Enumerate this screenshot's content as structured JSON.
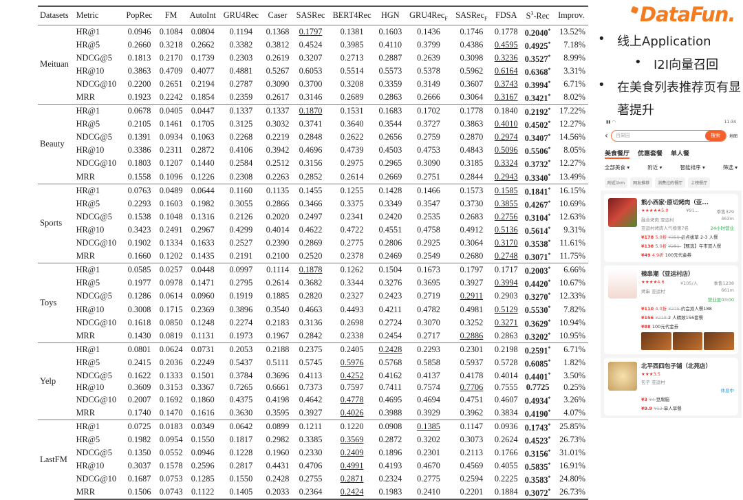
{
  "table": {
    "headers": [
      "Datasets",
      "Metric",
      "PopRec",
      "FM",
      "AutoInt",
      "GRU4Rec",
      "Caser",
      "SASRec",
      "BERT4Rec",
      "HGN",
      "GRU4Rec",
      "SASRec",
      "FDSA",
      "S",
      "Improv."
    ],
    "header_subscripts": {
      "10": "F",
      "11": "F"
    },
    "s3rec_header": {
      "base": "S",
      "sup": "3",
      "rest": "-Rec"
    },
    "groups": [
      {
        "dataset": "Meituan",
        "rows": [
          {
            "metric": "HR@1",
            "values": [
              "0.0946",
              "0.1084",
              "0.0804",
              "0.1194",
              "0.1368",
              "0.1797",
              "0.1381",
              "0.1603",
              "0.1436",
              "0.1746",
              "0.1778",
              "0.2040",
              "13.52%"
            ],
            "underline": 5,
            "star": true
          },
          {
            "metric": "HR@5",
            "values": [
              "0.2660",
              "0.3218",
              "0.2662",
              "0.3382",
              "0.3812",
              "0.4524",
              "0.3985",
              "0.4110",
              "0.3799",
              "0.4386",
              "0.4595",
              "0.4925",
              "7.18%"
            ],
            "underline": 10,
            "star": true
          },
          {
            "metric": "NDCG@5",
            "values": [
              "0.1813",
              "0.2170",
              "0.1739",
              "0.2303",
              "0.2619",
              "0.3207",
              "0.2713",
              "0.2887",
              "0.2639",
              "0.3098",
              "0.3236",
              "0.3527",
              "8.99%"
            ],
            "underline": 10,
            "star": true
          },
          {
            "metric": "HR@10",
            "values": [
              "0.3863",
              "0.4709",
              "0.4077",
              "0.4881",
              "0.5267",
              "0.6053",
              "0.5514",
              "0.5573",
              "0.5378",
              "0.5962",
              "0.6164",
              "0.6368",
              "3.31%"
            ],
            "underline": 10,
            "star": true
          },
          {
            "metric": "NDCG@10",
            "values": [
              "0.2200",
              "0.2651",
              "0.2194",
              "0.2787",
              "0.3090",
              "0.3700",
              "0.3208",
              "0.3359",
              "0.3149",
              "0.3607",
              "0.3743",
              "0.3994",
              "6.71%"
            ],
            "underline": 10,
            "star": true
          },
          {
            "metric": "MRR",
            "values": [
              "0.1923",
              "0.2242",
              "0.1854",
              "0.2359",
              "0.2617",
              "0.3146",
              "0.2689",
              "0.2863",
              "0.2666",
              "0.3064",
              "0.3167",
              "0.3421",
              "8.02%"
            ],
            "underline": 10,
            "star": true
          }
        ]
      },
      {
        "dataset": "Beauty",
        "rows": [
          {
            "metric": "HR@1",
            "values": [
              "0.0678",
              "0.0405",
              "0.0447",
              "0.1337",
              "0.1337",
              "0.1870",
              "0.1531",
              "0.1683",
              "0.1702",
              "0.1778",
              "0.1840",
              "0.2192",
              "17.22%"
            ],
            "underline": 5,
            "star": true
          },
          {
            "metric": "HR@5",
            "values": [
              "0.2105",
              "0.1461",
              "0.1705",
              "0.3125",
              "0.3032",
              "0.3741",
              "0.3640",
              "0.3544",
              "0.3727",
              "0.3863",
              "0.4010",
              "0.4502",
              "12.27%"
            ],
            "underline": 10,
            "star": true
          },
          {
            "metric": "NDCG@5",
            "values": [
              "0.1391",
              "0.0934",
              "0.1063",
              "0.2268",
              "0.2219",
              "0.2848",
              "0.2622",
              "0.2656",
              "0.2759",
              "0.2870",
              "0.2974",
              "0.3407",
              "14.56%"
            ],
            "underline": 10,
            "star": true
          },
          {
            "metric": "HR@10",
            "values": [
              "0.3386",
              "0.2311",
              "0.2872",
              "0.4106",
              "0.3942",
              "0.4696",
              "0.4739",
              "0.4503",
              "0.4753",
              "0.4843",
              "0.5096",
              "0.5506",
              "8.05%"
            ],
            "underline": 10,
            "star": true
          },
          {
            "metric": "NDCG@10",
            "values": [
              "0.1803",
              "0.1207",
              "0.1440",
              "0.2584",
              "0.2512",
              "0.3156",
              "0.2975",
              "0.2965",
              "0.3090",
              "0.3185",
              "0.3324",
              "0.3732",
              "12.27%"
            ],
            "underline": 10,
            "star": true
          },
          {
            "metric": "MRR",
            "values": [
              "0.1558",
              "0.1096",
              "0.1226",
              "0.2308",
              "0.2263",
              "0.2852",
              "0.2614",
              "0.2669",
              "0.2751",
              "0.2844",
              "0.2943",
              "0.3340",
              "13.49%"
            ],
            "underline": 10,
            "star": true
          }
        ]
      },
      {
        "dataset": "Sports",
        "rows": [
          {
            "metric": "HR@1",
            "values": [
              "0.0763",
              "0.0489",
              "0.0644",
              "0.1160",
              "0.1135",
              "0.1455",
              "0.1255",
              "0.1428",
              "0.1466",
              "0.1573",
              "0.1585",
              "0.1841",
              "16.15%"
            ],
            "underline": 10,
            "star": true
          },
          {
            "metric": "HR@5",
            "values": [
              "0.2293",
              "0.1603",
              "0.1982",
              "0.3055",
              "0.2866",
              "0.3466",
              "0.3375",
              "0.3349",
              "0.3547",
              "0.3730",
              "0.3855",
              "0.4267",
              "10.69%"
            ],
            "underline": 10,
            "star": true
          },
          {
            "metric": "NDCG@5",
            "values": [
              "0.1538",
              "0.1048",
              "0.1316",
              "0.2126",
              "0.2020",
              "0.2497",
              "0.2341",
              "0.2420",
              "0.2535",
              "0.2683",
              "0.2756",
              "0.3104",
              "12.63%"
            ],
            "underline": 10,
            "star": true
          },
          {
            "metric": "HR@10",
            "values": [
              "0.3423",
              "0.2491",
              "0.2967",
              "0.4299",
              "0.4014",
              "0.4622",
              "0.4722",
              "0.4551",
              "0.4758",
              "0.4912",
              "0.5136",
              "0.5614",
              "9.31%"
            ],
            "underline": 10,
            "star": true
          },
          {
            "metric": "NDCG@10",
            "values": [
              "0.1902",
              "0.1334",
              "0.1633",
              "0.2527",
              "0.2390",
              "0.2869",
              "0.2775",
              "0.2806",
              "0.2925",
              "0.3064",
              "0.3170",
              "0.3538",
              "11.61%"
            ],
            "underline": 10,
            "star": true
          },
          {
            "metric": "MRR",
            "values": [
              "0.1660",
              "0.1202",
              "0.1435",
              "0.2191",
              "0.2100",
              "0.2520",
              "0.2378",
              "0.2469",
              "0.2549",
              "0.2680",
              "0.2748",
              "0.3071",
              "11.75%"
            ],
            "underline": 10,
            "star": true
          }
        ]
      },
      {
        "dataset": "Toys",
        "rows": [
          {
            "metric": "HR@1",
            "values": [
              "0.0585",
              "0.0257",
              "0.0448",
              "0.0997",
              "0.1114",
              "0.1878",
              "0.1262",
              "0.1504",
              "0.1673",
              "0.1797",
              "0.1717",
              "0.2003",
              "6.66%"
            ],
            "underline": 5,
            "star": true
          },
          {
            "metric": "HR@5",
            "values": [
              "0.1977",
              "0.0978",
              "0.1471",
              "0.2795",
              "0.2614",
              "0.3682",
              "0.3344",
              "0.3276",
              "0.3695",
              "0.3927",
              "0.3994",
              "0.4420",
              "10.67%"
            ],
            "underline": 10,
            "star": true
          },
          {
            "metric": "NDCG@5",
            "values": [
              "0.1286",
              "0.0614",
              "0.0960",
              "0.1919",
              "0.1885",
              "0.2820",
              "0.2327",
              "0.2423",
              "0.2719",
              "0.2911",
              "0.2903",
              "0.3270",
              "12.33%"
            ],
            "underline": 9,
            "star": true
          },
          {
            "metric": "HR@10",
            "values": [
              "0.3008",
              "0.1715",
              "0.2369",
              "0.3896",
              "0.3540",
              "0.4663",
              "0.4493",
              "0.4211",
              "0.4782",
              "0.4981",
              "0.5129",
              "0.5530",
              "7.82%"
            ],
            "underline": 10,
            "star": true
          },
          {
            "metric": "NDCG@10",
            "values": [
              "0.1618",
              "0.0850",
              "0.1248",
              "0.2274",
              "0.2183",
              "0.3136",
              "0.2698",
              "0.2724",
              "0.3070",
              "0.3252",
              "0.3271",
              "0.3629",
              "10.94%"
            ],
            "underline": 10,
            "star": true
          },
          {
            "metric": "MRR",
            "values": [
              "0.1430",
              "0.0819",
              "0.1131",
              "0.1973",
              "0.1967",
              "0.2842",
              "0.2338",
              "0.2454",
              "0.2717",
              "0.2886",
              "0.2863",
              "0.3202",
              "10.95%"
            ],
            "underline": 9,
            "star": true
          }
        ]
      },
      {
        "dataset": "Yelp",
        "rows": [
          {
            "metric": "HR@1",
            "values": [
              "0.0801",
              "0.0624",
              "0.0731",
              "0.2053",
              "0.2188",
              "0.2375",
              "0.2405",
              "0.2428",
              "0.2293",
              "0.2301",
              "0.2198",
              "0.2591",
              "6.71%"
            ],
            "underline": 7,
            "star": true
          },
          {
            "metric": "HR@5",
            "values": [
              "0.2415",
              "0.2036",
              "0.2249",
              "0.5437",
              "0.5111",
              "0.5745",
              "0.5976",
              "0.5768",
              "0.5858",
              "0.5937",
              "0.5728",
              "0.6085",
              "1.82%"
            ],
            "underline": 6,
            "star": true
          },
          {
            "metric": "NDCG@5",
            "values": [
              "0.1622",
              "0.1333",
              "0.1501",
              "0.3784",
              "0.3696",
              "0.4113",
              "0.4252",
              "0.4162",
              "0.4137",
              "0.4178",
              "0.4014",
              "0.4401",
              "3.50%"
            ],
            "underline": 6,
            "star": true
          },
          {
            "metric": "HR@10",
            "values": [
              "0.3609",
              "0.3153",
              "0.3367",
              "0.7265",
              "0.6661",
              "0.7373",
              "0.7597",
              "0.7411",
              "0.7574",
              "0.7706",
              "0.7555",
              "0.7725",
              "0.25%"
            ],
            "underline": 9,
            "star": false
          },
          {
            "metric": "NDCG@10",
            "values": [
              "0.2007",
              "0.1692",
              "0.1860",
              "0.4375",
              "0.4198",
              "0.4642",
              "0.4778",
              "0.4695",
              "0.4694",
              "0.4751",
              "0.4607",
              "0.4934",
              "3.26%"
            ],
            "underline": 6,
            "star": true
          },
          {
            "metric": "MRR",
            "values": [
              "0.1740",
              "0.1470",
              "0.1616",
              "0.3630",
              "0.3595",
              "0.3927",
              "0.4026",
              "0.3988",
              "0.3929",
              "0.3962",
              "0.3834",
              "0.4190",
              "4.07%"
            ],
            "underline": 6,
            "star": true
          }
        ]
      },
      {
        "dataset": "LastFM",
        "rows": [
          {
            "metric": "HR@1",
            "values": [
              "0.0725",
              "0.0183",
              "0.0349",
              "0.0642",
              "0.0899",
              "0.1211",
              "0.1220",
              "0.0908",
              "0.1385",
              "0.1147",
              "0.0936",
              "0.1743",
              "25.85%"
            ],
            "underline": 8,
            "star": true
          },
          {
            "metric": "HR@5",
            "values": [
              "0.1982",
              "0.0954",
              "0.1550",
              "0.1817",
              "0.2982",
              "0.3385",
              "0.3569",
              "0.2872",
              "0.3202",
              "0.3073",
              "0.2624",
              "0.4523",
              "26.73%"
            ],
            "underline": 6,
            "star": true
          },
          {
            "metric": "NDCG@5",
            "values": [
              "0.1350",
              "0.0552",
              "0.0946",
              "0.1228",
              "0.1960",
              "0.2330",
              "0.2409",
              "0.1896",
              "0.2301",
              "0.2113",
              "0.1766",
              "0.3156",
              "31.01%"
            ],
            "underline": 6,
            "star": true
          },
          {
            "metric": "HR@10",
            "values": [
              "0.3037",
              "0.1578",
              "0.2596",
              "0.2817",
              "0.4431",
              "0.4706",
              "0.4991",
              "0.4193",
              "0.4670",
              "0.4569",
              "0.4055",
              "0.5835",
              "16.91%"
            ],
            "underline": 6,
            "star": true
          },
          {
            "metric": "NDCG@10",
            "values": [
              "0.1687",
              "0.0753",
              "0.1285",
              "0.1550",
              "0.2428",
              "0.2755",
              "0.2871",
              "0.2324",
              "0.2775",
              "0.2594",
              "0.2225",
              "0.3583",
              "24.80%"
            ],
            "underline": 6,
            "star": true
          },
          {
            "metric": "MRR",
            "values": [
              "0.1506",
              "0.0743",
              "0.1122",
              "0.1405",
              "0.2033",
              "0.2364",
              "0.2424",
              "0.1983",
              "0.2410",
              "0.2201",
              "0.1884",
              "0.3072",
              "26.73%"
            ],
            "underline": 6,
            "star": true
          }
        ]
      }
    ]
  },
  "logo": "DataFun.",
  "bullets": [
    "线上Application",
    "I2I向量召回",
    "在美食列表推荐页有显",
    "著提升"
  ],
  "phone": {
    "time": "11:34",
    "search_placeholder": "百果园",
    "search_button": "搜索",
    "map_label": "地图",
    "tabs": [
      "美食餐厅",
      "优惠套餐",
      "单人餐"
    ],
    "filters": [
      "全部美食 ▾",
      "附近 ▾",
      "智能排序 ▾",
      "筛选 ▾"
    ],
    "chips": [
      "附近1km",
      "网友推荐",
      "消费过的餐厅",
      "上榜餐厅"
    ],
    "cards": [
      {
        "name": "熊小西家·原切烤肉（亚...",
        "rating": "★★★★★5.0",
        "price": "¥91...",
        "sales": "季售329",
        "tags": "融合烤肉  亚运村",
        "distance": "463m",
        "rank": "亚运村烤肉人气榜第7名",
        "hours": "24小时营业",
        "deals": [
          {
            "price": "¥178",
            "discount": "5.0折",
            "orig": "¥359",
            "desc": "必点拔草 2-3 人餐"
          },
          {
            "price": "¥138",
            "discount": "5.0折",
            "orig": "¥281",
            "desc": "【甄选】午市双人餐"
          },
          {
            "price": "¥49",
            "discount": "4.9折",
            "orig": "",
            "desc": "100元代金券"
          }
        ]
      },
      {
        "name": "辣串潮（亚运村店）",
        "rating": "★★★★4.6",
        "price": "¥105/人",
        "sales": "季售1238",
        "tags": "烤串  亚运村",
        "distance": "661m",
        "rank": "",
        "hours": "营业至03:00",
        "deals": [
          {
            "price": "¥110",
            "discount": "4.0折",
            "orig": "¥275",
            "desc": "约会双人餐188"
          },
          {
            "price": "¥156",
            "discount": "",
            "orig": "¥218",
            "desc": "2 人精致156套餐"
          },
          {
            "price": "¥88",
            "discount": "",
            "orig": "",
            "desc": "100元代金券"
          }
        ]
      },
      {
        "name": "北平西四包子铺（北苑店）",
        "rating": "★★★3.5",
        "price": "",
        "sales": "",
        "tags": "包子  亚运村",
        "distance": "",
        "rank": "",
        "hours": "休息中",
        "deals": [
          {
            "price": "¥3",
            "discount": "",
            "orig": "¥4",
            "desc": "豆腐脑"
          },
          {
            "price": "¥9.9",
            "discount": "",
            "orig": "¥12",
            "desc": "单人早餐"
          }
        ]
      }
    ]
  },
  "colors": {
    "brand": "#f47b20",
    "accent": "#f4602b",
    "price": "#f4302b",
    "open": "#2bb24c"
  }
}
